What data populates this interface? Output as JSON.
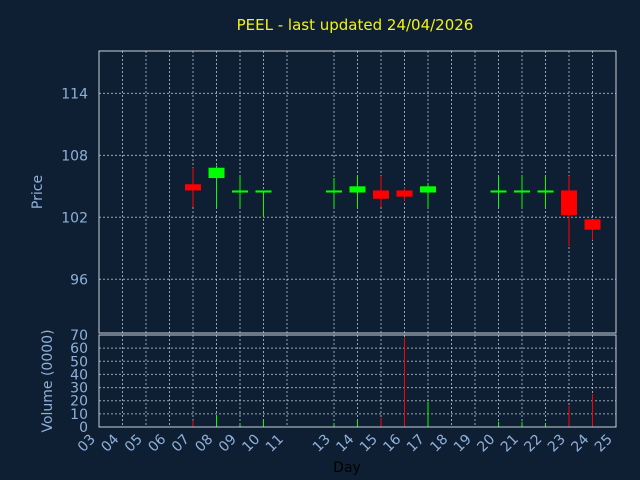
{
  "chart_data": {
    "type": "candlestick",
    "title": "PEEL - last updated 24/04/2026",
    "xlabel": "Day",
    "ylabel_price": "Price",
    "ylabel_volume": "Volume (0000)",
    "x_ticks": [
      "03",
      "04",
      "05",
      "06",
      "07",
      "08",
      "09",
      "10",
      "11",
      "13",
      "14",
      "15",
      "16",
      "17",
      "18",
      "19",
      "20",
      "21",
      "22",
      "23",
      "24",
      "25"
    ],
    "x_tick_values": [
      3,
      4,
      5,
      6,
      7,
      8,
      9,
      10,
      11,
      13,
      14,
      15,
      16,
      17,
      18,
      19,
      20,
      21,
      22,
      23,
      24,
      25
    ],
    "x_range": [
      3,
      25
    ],
    "price_range": [
      90.8,
      118.1
    ],
    "price_ticks": [
      96,
      102,
      108,
      114
    ],
    "volume_range": [
      0,
      70
    ],
    "volume_ticks": [
      0,
      10,
      20,
      30,
      40,
      50,
      60,
      70
    ],
    "grid": true,
    "colors": {
      "up": "#00ff00",
      "down": "#ff0000"
    },
    "candles": [
      {
        "day": 7,
        "open": 105.2,
        "high": 106.8,
        "low": 103.0,
        "close": 104.6
      },
      {
        "day": 8,
        "open": 105.8,
        "high": 107.0,
        "low": 103.0,
        "close": 106.8
      },
      {
        "day": 9,
        "open": 104.4,
        "high": 106.0,
        "low": 103.0,
        "close": 104.6
      },
      {
        "day": 10,
        "open": 104.4,
        "high": 104.6,
        "low": 102.0,
        "close": 104.6
      },
      {
        "day": 13,
        "open": 104.4,
        "high": 105.8,
        "low": 103.0,
        "close": 104.6
      },
      {
        "day": 14,
        "open": 104.4,
        "high": 106.0,
        "low": 103.0,
        "close": 105.0
      },
      {
        "day": 15,
        "open": 104.6,
        "high": 106.0,
        "low": 103.0,
        "close": 103.8
      },
      {
        "day": 16,
        "open": 104.6,
        "high": 104.9,
        "low": 103.6,
        "close": 104.0
      },
      {
        "day": 17,
        "open": 104.4,
        "high": 105.2,
        "low": 103.0,
        "close": 105.0
      },
      {
        "day": 20,
        "open": 104.4,
        "high": 106.0,
        "low": 103.0,
        "close": 104.6
      },
      {
        "day": 21,
        "open": 104.4,
        "high": 106.0,
        "low": 103.0,
        "close": 104.6
      },
      {
        "day": 22,
        "open": 104.4,
        "high": 106.0,
        "low": 103.0,
        "close": 104.6
      },
      {
        "day": 23,
        "open": 104.6,
        "high": 106.0,
        "low": 99.2,
        "close": 102.2
      },
      {
        "day": 24,
        "open": 101.8,
        "high": 101.8,
        "low": 99.8,
        "close": 100.8
      }
    ],
    "volume": [
      {
        "day": 7,
        "value": 5,
        "dir": "down"
      },
      {
        "day": 8,
        "value": 9,
        "dir": "up"
      },
      {
        "day": 9,
        "value": 2,
        "dir": "up"
      },
      {
        "day": 10,
        "value": 6,
        "dir": "up"
      },
      {
        "day": 13,
        "value": 3,
        "dir": "up"
      },
      {
        "day": 14,
        "value": 5,
        "dir": "up"
      },
      {
        "day": 15,
        "value": 7,
        "dir": "down"
      },
      {
        "day": 16,
        "value": 68,
        "dir": "down"
      },
      {
        "day": 17,
        "value": 19,
        "dir": "up"
      },
      {
        "day": 20,
        "value": 4,
        "dir": "up"
      },
      {
        "day": 21,
        "value": 4,
        "dir": "up"
      },
      {
        "day": 22,
        "value": 2,
        "dir": "up"
      },
      {
        "day": 23,
        "value": 16,
        "dir": "down"
      },
      {
        "day": 24,
        "value": 25,
        "dir": "down"
      }
    ]
  }
}
